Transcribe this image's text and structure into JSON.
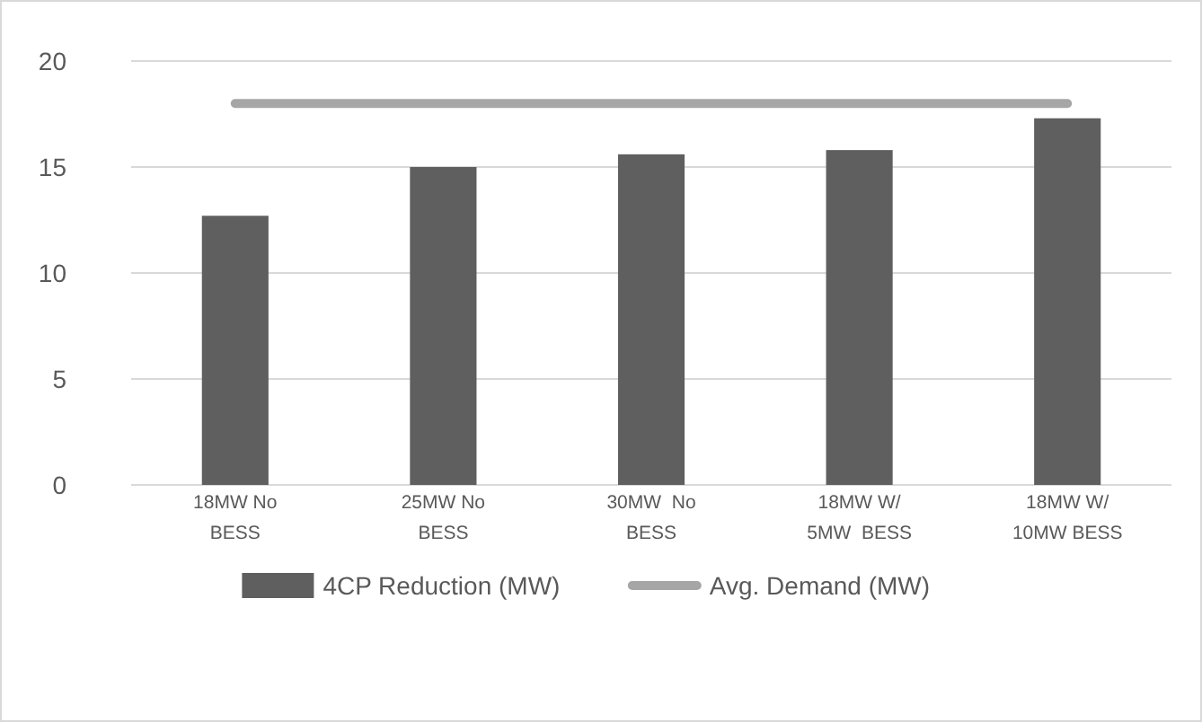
{
  "chart_data": {
    "type": "bar",
    "categories": [
      "18MW No BESS",
      "25MW No BESS",
      "30MW  No BESS",
      "18MW W/ 5MW  BESS",
      "18MW W/ 10MW BESS"
    ],
    "series": [
      {
        "name": "4CP Reduction (MW)",
        "color": "#5f5f5f",
        "values": [
          12.7,
          15.0,
          15.6,
          15.8,
          17.3
        ]
      },
      {
        "name": "Avg. Demand (MW)",
        "type": "line",
        "color": "#a6a6a6",
        "values": [
          18,
          18,
          18,
          18,
          18
        ]
      }
    ],
    "ylim": [
      0,
      20
    ],
    "yticks": [
      0,
      5,
      10,
      15,
      20
    ],
    "grid": "y",
    "legend": "bottom"
  }
}
